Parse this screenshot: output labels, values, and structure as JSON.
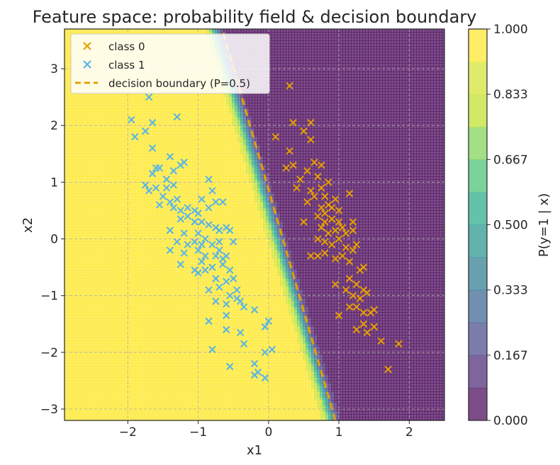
{
  "chart_data": {
    "type": "scatter",
    "title": "Feature space: probability field & decision boundary",
    "xlabel": "x1",
    "ylabel": "x2",
    "xlim": [
      -2.9,
      2.5
    ],
    "ylim": [
      -3.2,
      3.7
    ],
    "x_ticks": [
      -2,
      -1,
      0,
      1,
      2
    ],
    "x_tick_labels": [
      "−2",
      "−1",
      "0",
      "1",
      "2"
    ],
    "y_ticks": [
      -3,
      -2,
      -1,
      0,
      1,
      2,
      3
    ],
    "y_tick_labels": [
      "−3",
      "−2",
      "−1",
      "0",
      "1",
      "2",
      "3"
    ],
    "grid": true,
    "legend_position": "top-left",
    "legend": {
      "class0": "class 0",
      "class1": "class 1",
      "boundary": "decision boundary (P=0.5)"
    },
    "colorbar": {
      "label": "P(y=1 | x)",
      "range": [
        0,
        1
      ],
      "tick_values": [
        0,
        0.1667,
        0.3333,
        0.5,
        0.6667,
        0.8333,
        1
      ],
      "tick_labels": [
        "0.000",
        "0.167",
        "0.333",
        "0.500",
        "0.667",
        "0.833",
        "1.000"
      ],
      "levels": 12,
      "colors": [
        "#440154",
        "#482475",
        "#414487",
        "#355f8d",
        "#2a788e",
        "#21918c",
        "#22a884",
        "#44bf70",
        "#7ad151",
        "#bddf26",
        "#d4e22c",
        "#fde725"
      ]
    },
    "probability_model": {
      "w1": -17.7,
      "w2": -4.27,
      "b": 2.11
    },
    "boundary_line": {
      "x": [
        0.95,
        -0.66
      ],
      "y": [
        -3.2,
        3.7
      ]
    },
    "series": [
      {
        "name": "class 0",
        "color": "#e69f00",
        "marker": "x",
        "points": [
          [
            0.3,
            2.7
          ],
          [
            0.1,
            1.8
          ],
          [
            0.35,
            2.05
          ],
          [
            0.5,
            1.9
          ],
          [
            0.3,
            1.55
          ],
          [
            0.6,
            2.05
          ],
          [
            0.6,
            1.75
          ],
          [
            0.25,
            1.25
          ],
          [
            0.45,
            1.05
          ],
          [
            0.35,
            1.3
          ],
          [
            0.55,
            1.2
          ],
          [
            0.65,
            1.35
          ],
          [
            0.75,
            1.3
          ],
          [
            0.85,
            1.0
          ],
          [
            0.7,
            1.1
          ],
          [
            0.6,
            0.85
          ],
          [
            0.65,
            0.75
          ],
          [
            0.75,
            0.9
          ],
          [
            0.8,
            0.75
          ],
          [
            0.85,
            0.6
          ],
          [
            0.95,
            0.7
          ],
          [
            0.75,
            0.55
          ],
          [
            0.8,
            0.45
          ],
          [
            0.9,
            0.55
          ],
          [
            1.0,
            0.5
          ],
          [
            0.7,
            0.4
          ],
          [
            0.8,
            0.3
          ],
          [
            0.9,
            0.35
          ],
          [
            1.0,
            0.3
          ],
          [
            1.05,
            0.2
          ],
          [
            0.75,
            0.2
          ],
          [
            0.85,
            0.1
          ],
          [
            0.95,
            0.15
          ],
          [
            1.1,
            0.1
          ],
          [
            1.2,
            0.15
          ],
          [
            0.7,
            0.0
          ],
          [
            0.8,
            -0.05
          ],
          [
            0.9,
            -0.1
          ],
          [
            1.0,
            0.0
          ],
          [
            1.1,
            -0.15
          ],
          [
            1.2,
            -0.2
          ],
          [
            1.25,
            -0.1
          ],
          [
            0.7,
            -0.3
          ],
          [
            0.8,
            -0.25
          ],
          [
            0.95,
            -0.35
          ],
          [
            1.05,
            -0.3
          ],
          [
            1.15,
            -0.4
          ],
          [
            1.3,
            -0.55
          ],
          [
            1.35,
            -0.5
          ],
          [
            1.15,
            -0.7
          ],
          [
            1.25,
            -0.8
          ],
          [
            1.35,
            -0.9
          ],
          [
            1.1,
            -0.9
          ],
          [
            1.2,
            -1.0
          ],
          [
            1.3,
            -1.05
          ],
          [
            1.4,
            -0.95
          ],
          [
            1.15,
            -1.2
          ],
          [
            1.25,
            -1.2
          ],
          [
            1.35,
            -1.3
          ],
          [
            1.45,
            -1.3
          ],
          [
            1.5,
            -1.25
          ],
          [
            1.35,
            -1.5
          ],
          [
            1.4,
            -1.65
          ],
          [
            1.25,
            -1.6
          ],
          [
            1.5,
            -1.55
          ],
          [
            1.6,
            -1.8
          ],
          [
            1.7,
            -2.3
          ],
          [
            1.85,
            -1.85
          ],
          [
            1.0,
            -1.35
          ],
          [
            0.6,
            -0.3
          ],
          [
            0.5,
            0.3
          ],
          [
            0.55,
            0.65
          ],
          [
            0.4,
            0.9
          ],
          [
            1.15,
            0.8
          ],
          [
            0.95,
            -0.8
          ],
          [
            1.2,
            0.3
          ]
        ]
      },
      {
        "name": "class 1",
        "color": "#56b4e9",
        "marker": "x",
        "points": [
          [
            -1.95,
            2.1
          ],
          [
            -1.9,
            1.8
          ],
          [
            -1.75,
            1.9
          ],
          [
            -1.65,
            2.05
          ],
          [
            -1.7,
            2.5
          ],
          [
            -1.65,
            1.6
          ],
          [
            -1.3,
            2.15
          ],
          [
            -1.6,
            1.25
          ],
          [
            -1.65,
            1.15
          ],
          [
            -1.55,
            1.25
          ],
          [
            -1.4,
            1.45
          ],
          [
            -1.25,
            1.3
          ],
          [
            -1.45,
            1.05
          ],
          [
            -1.35,
            1.2
          ],
          [
            -1.2,
            1.35
          ],
          [
            -1.75,
            0.95
          ],
          [
            -1.7,
            0.85
          ],
          [
            -1.6,
            0.9
          ],
          [
            -1.45,
            0.9
          ],
          [
            -1.35,
            0.95
          ],
          [
            -1.3,
            0.7
          ],
          [
            -1.4,
            0.65
          ],
          [
            -1.35,
            0.55
          ],
          [
            -1.25,
            0.5
          ],
          [
            -1.15,
            0.55
          ],
          [
            -1.05,
            0.5
          ],
          [
            -0.95,
            0.7
          ],
          [
            -0.85,
            0.55
          ],
          [
            -0.75,
            0.65
          ],
          [
            -0.65,
            0.65
          ],
          [
            -1.25,
            0.35
          ],
          [
            -1.15,
            0.4
          ],
          [
            -1.05,
            0.3
          ],
          [
            -0.95,
            0.3
          ],
          [
            -0.85,
            0.25
          ],
          [
            -1.4,
            0.15
          ],
          [
            -1.2,
            0.1
          ],
          [
            -1.0,
            0.1
          ],
          [
            -0.7,
            0.15
          ],
          [
            -0.6,
            0.2
          ],
          [
            -1.3,
            -0.05
          ],
          [
            -1.15,
            -0.1
          ],
          [
            -1.05,
            -0.05
          ],
          [
            -0.95,
            -0.1
          ],
          [
            -0.8,
            -0.1
          ],
          [
            -1.4,
            -0.2
          ],
          [
            -1.2,
            -0.25
          ],
          [
            -1.0,
            -0.2
          ],
          [
            -0.9,
            -0.3
          ],
          [
            -0.7,
            -0.2
          ],
          [
            -0.6,
            -0.3
          ],
          [
            -1.25,
            -0.45
          ],
          [
            -1.0,
            -0.6
          ],
          [
            -0.9,
            -0.55
          ],
          [
            -0.8,
            -0.5
          ],
          [
            -0.65,
            -0.45
          ],
          [
            -0.55,
            -0.55
          ],
          [
            -0.75,
            -0.7
          ],
          [
            -0.6,
            -0.75
          ],
          [
            -0.5,
            -0.7
          ],
          [
            -0.85,
            -0.9
          ],
          [
            -0.7,
            -0.85
          ],
          [
            -0.55,
            -1.0
          ],
          [
            -0.45,
            -0.9
          ],
          [
            -0.75,
            -1.1
          ],
          [
            -0.6,
            -1.15
          ],
          [
            -0.4,
            -1.1
          ],
          [
            -0.35,
            -1.2
          ],
          [
            -0.85,
            -1.45
          ],
          [
            -0.6,
            -1.35
          ],
          [
            -0.2,
            -1.25
          ],
          [
            -0.6,
            -1.6
          ],
          [
            -0.4,
            -1.65
          ],
          [
            -0.35,
            -1.85
          ],
          [
            -0.8,
            -1.95
          ],
          [
            -0.2,
            -2.2
          ],
          [
            -0.15,
            -2.35
          ],
          [
            -0.2,
            -2.4
          ],
          [
            -0.05,
            -2.45
          ],
          [
            -0.05,
            -1.55
          ],
          [
            0.0,
            -1.45
          ],
          [
            -0.05,
            -2.0
          ],
          [
            0.05,
            -1.95
          ],
          [
            -0.55,
            -2.25
          ],
          [
            -0.65,
            -0.35
          ],
          [
            -0.9,
            0.0
          ],
          [
            -1.0,
            0.45
          ],
          [
            -0.8,
            0.85
          ],
          [
            -0.85,
            1.05
          ],
          [
            -1.5,
            0.75
          ],
          [
            -1.55,
            0.6
          ],
          [
            -0.75,
            0.2
          ],
          [
            -0.95,
            -0.4
          ],
          [
            -0.7,
            -0.05
          ],
          [
            -0.75,
            -0.3
          ],
          [
            -0.5,
            -0.05
          ],
          [
            -0.55,
            0.15
          ],
          [
            -1.05,
            -0.55
          ],
          [
            -0.45,
            -1.05
          ]
        ]
      }
    ]
  }
}
